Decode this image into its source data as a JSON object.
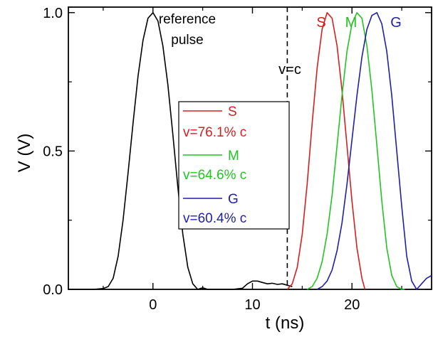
{
  "chart_data": {
    "type": "line",
    "title": "",
    "xlabel": "t (ns)",
    "ylabel": "V (V)",
    "xlim": [
      -8.5,
      28
    ],
    "ylim": [
      0,
      1.02
    ],
    "x_ticks": [
      0,
      10,
      20
    ],
    "y_ticks": [
      0.0,
      0.5,
      1.0
    ],
    "x_tick_labels": [
      "0",
      "10",
      "20"
    ],
    "y_tick_labels": [
      "0.0",
      "0.5",
      "1.0"
    ],
    "grid": false,
    "legend_position": "center-left",
    "series": [
      {
        "name": "reference pulse",
        "color": "#000000",
        "x": [
          -8.5,
          -6,
          -5,
          -4.5,
          -4,
          -3.5,
          -3,
          -2.5,
          -2,
          -1.5,
          -1,
          -0.5,
          0,
          0.5,
          1,
          1.5,
          2,
          2.5,
          3,
          3.5,
          4,
          4.5,
          5,
          5.5,
          6,
          7,
          8,
          9,
          9.5,
          10,
          10.5,
          11,
          11.5,
          12,
          12.5,
          13,
          13.5,
          14
        ],
        "y": [
          0.0,
          0.0,
          0.003,
          0.01,
          0.04,
          0.12,
          0.25,
          0.42,
          0.6,
          0.77,
          0.9,
          0.98,
          1.0,
          0.97,
          0.88,
          0.74,
          0.56,
          0.37,
          0.2,
          0.08,
          0.02,
          0.0,
          0.006,
          0.0,
          0.0,
          0.0,
          0.0,
          0.004,
          0.02,
          0.03,
          0.03,
          0.025,
          0.02,
          0.022,
          0.018,
          0.02,
          0.015,
          0.01
        ]
      },
      {
        "name": "S",
        "color": "#d62020",
        "x": [
          13.5,
          14,
          14.5,
          15,
          15.5,
          16,
          16.5,
          17,
          17.5,
          18,
          18.5,
          19,
          19.5,
          20,
          20.5,
          21,
          21.3
        ],
        "y": [
          0.0,
          0.02,
          0.08,
          0.2,
          0.38,
          0.6,
          0.8,
          0.94,
          1.0,
          0.98,
          0.88,
          0.72,
          0.52,
          0.32,
          0.15,
          0.04,
          0.0
        ]
      },
      {
        "name": "M",
        "color": "#22c422",
        "x": [
          15.5,
          16,
          16.5,
          17,
          17.5,
          18,
          18.5,
          19,
          19.5,
          20,
          20.5,
          21,
          21.5,
          22,
          22.5,
          23,
          23.5,
          24,
          24.5,
          25,
          25.3
        ],
        "y": [
          0.0,
          0.01,
          0.04,
          0.1,
          0.2,
          0.34,
          0.52,
          0.7,
          0.86,
          0.96,
          1.0,
          0.98,
          0.88,
          0.72,
          0.52,
          0.32,
          0.15,
          0.05,
          0.01,
          0.0,
          0.0
        ]
      },
      {
        "name": "G",
        "color": "#1f1fa8",
        "x": [
          16.5,
          17,
          17.5,
          18,
          18.5,
          19,
          19.5,
          20,
          20.5,
          21,
          21.5,
          22,
          22.5,
          23,
          23.5,
          24,
          24.5,
          25,
          25.5,
          26,
          26.5,
          27,
          27.5,
          28
        ],
        "y": [
          0.0,
          0.01,
          0.03,
          0.07,
          0.14,
          0.24,
          0.38,
          0.54,
          0.7,
          0.84,
          0.94,
          0.99,
          1.0,
          0.96,
          0.86,
          0.7,
          0.5,
          0.3,
          0.12,
          0.03,
          0.0,
          0.02,
          0.04,
          0.05
        ]
      }
    ],
    "legend": [
      {
        "label": "S",
        "velocity": "v=76.1% c",
        "color": "#d62020"
      },
      {
        "label": "M",
        "velocity": "v=64.6% c",
        "color": "#22c422"
      },
      {
        "label": "G",
        "velocity": "v=60.4% c",
        "color": "#1f1fa8"
      }
    ],
    "annotations": {
      "reference_line1": "reference",
      "reference_line2": "pulse",
      "vc_label": "v=c",
      "vc_x": 13.5,
      "peak_S": "S",
      "peak_M": "M",
      "peak_G": "G"
    }
  }
}
